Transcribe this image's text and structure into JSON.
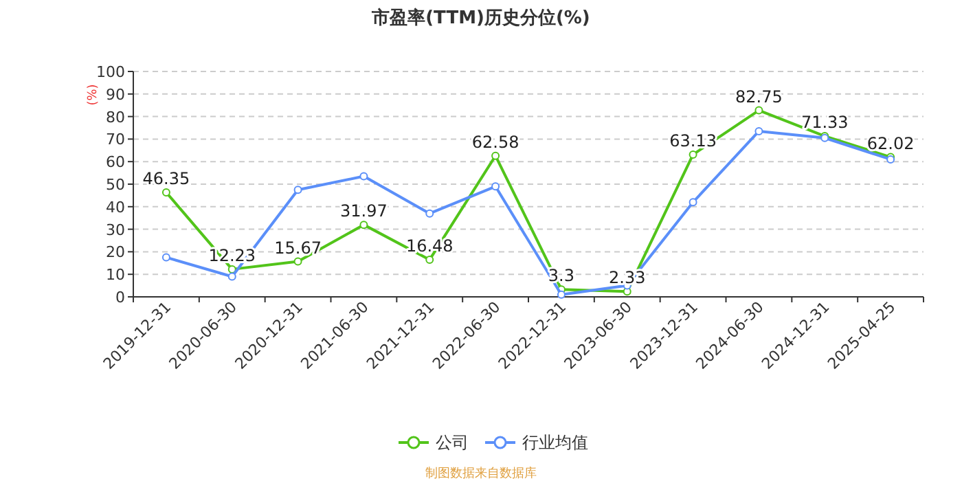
{
  "chart_data": {
    "type": "line",
    "title": "市盈率(TTM)历史分位(%)",
    "ylabel": "(%)",
    "categories": [
      "2019-12-31",
      "2020-06-30",
      "2020-12-31",
      "2021-06-30",
      "2021-12-31",
      "2022-06-30",
      "2022-12-31",
      "2023-06-30",
      "2023-12-31",
      "2024-06-30",
      "2024-12-31",
      "2025-04-25"
    ],
    "series": [
      {
        "name": "公司",
        "color": "#52c41a",
        "values": [
          46.35,
          12.23,
          15.67,
          31.97,
          16.48,
          62.58,
          3.3,
          2.33,
          63.13,
          82.75,
          71.33,
          62.02
        ],
        "data_labels": true
      },
      {
        "name": "行业均值",
        "color": "#5b8ff9",
        "values": [
          17.5,
          9,
          47.5,
          53.5,
          37,
          49,
          1,
          5,
          42,
          73.5,
          70.5,
          61
        ]
      }
    ],
    "ylim": [
      0,
      100
    ],
    "yticks": [
      0,
      10,
      20,
      30,
      40,
      50,
      60,
      70,
      80,
      90,
      100
    ],
    "grid": "y",
    "legend": "bottom",
    "marker": "circle",
    "annotations": [
      "制图数据来自数据库"
    ]
  }
}
